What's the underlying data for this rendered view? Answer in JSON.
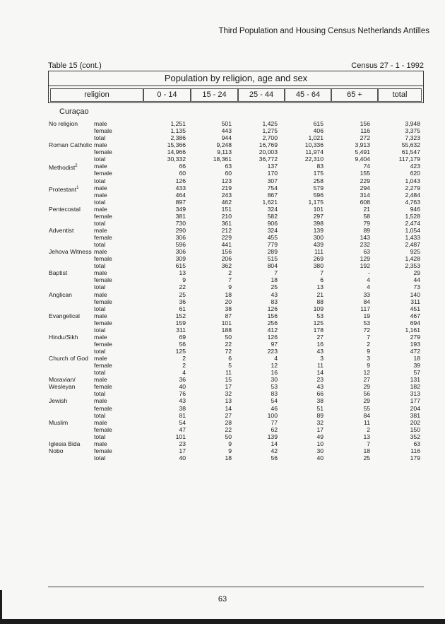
{
  "header": {
    "running_title": "Third Population and Housing Census Netherlands Antilles"
  },
  "table": {
    "label": "Table 15 (cont.)",
    "census": "Census 27 - 1 - 1992",
    "title": "Population by religion, age and sex",
    "columns": [
      "religion",
      "0 - 14",
      "15 - 24",
      "25 - 44",
      "45 - 64",
      "65 +",
      "total"
    ],
    "region": "Curaçao",
    "groups": [
      {
        "religion": "No religion",
        "rows": [
          [
            "male",
            "1,251",
            "501",
            "1,425",
            "615",
            "156",
            "3,948"
          ],
          [
            "female",
            "1,135",
            "443",
            "1,275",
            "406",
            "116",
            "3,375"
          ],
          [
            "total",
            "2,386",
            "944",
            "2,700",
            "1,021",
            "272",
            "7,323"
          ]
        ]
      },
      {
        "religion": "Roman Catholic",
        "rows": [
          [
            "male",
            "15,366",
            "9,248",
            "16,769",
            "10,336",
            "3,913",
            "55,632"
          ],
          [
            "female",
            "14,966",
            "9,113",
            "20,003",
            "11,974",
            "5,491",
            "61,547"
          ],
          [
            "total",
            "30,332",
            "18,361",
            "36,772",
            "22,310",
            "9,404",
            "117,179"
          ]
        ]
      },
      {
        "religion": "Methodist",
        "sup": "2",
        "rows": [
          [
            "male",
            "66",
            "63",
            "137",
            "83",
            "74",
            "423"
          ],
          [
            "female",
            "60",
            "60",
            "170",
            "175",
            "155",
            "620"
          ],
          [
            "total",
            "126",
            "123",
            "307",
            "258",
            "229",
            "1,043"
          ]
        ]
      },
      {
        "religion": "Protestant",
        "sup": "1",
        "rows": [
          [
            "male",
            "433",
            "219",
            "754",
            "579",
            "294",
            "2,279"
          ],
          [
            "male",
            "464",
            "243",
            "867",
            "596",
            "314",
            "2,484"
          ],
          [
            "total",
            "897",
            "462",
            "1,621",
            "1,175",
            "608",
            "4,763"
          ]
        ]
      },
      {
        "religion": "Pentecostal",
        "rows": [
          [
            "male",
            "349",
            "151",
            "324",
            "101",
            "21",
            "946"
          ],
          [
            "female",
            "381",
            "210",
            "582",
            "297",
            "58",
            "1,528"
          ],
          [
            "total",
            "730",
            "361",
            "906",
            "398",
            "79",
            "2,474"
          ]
        ]
      },
      {
        "religion": "Adventist",
        "rows": [
          [
            "male",
            "290",
            "212",
            "324",
            "139",
            "89",
            "1,054"
          ],
          [
            "female",
            "306",
            "229",
            "455",
            "300",
            "143",
            "1,433"
          ],
          [
            "total",
            "596",
            "441",
            "779",
            "439",
            "232",
            "2,487"
          ]
        ]
      },
      {
        "religion": "Jehova Witness",
        "rows": [
          [
            "male",
            "306",
            "156",
            "289",
            "111",
            "63",
            "925"
          ],
          [
            "female",
            "309",
            "206",
            "515",
            "269",
            "129",
            "1,428"
          ],
          [
            "total",
            "615",
            "362",
            "804",
            "380",
            "192",
            "2,353"
          ]
        ]
      },
      {
        "religion": "Baptist",
        "rows": [
          [
            "male",
            "13",
            "2",
            "7",
            "7",
            "-",
            "29"
          ],
          [
            "female",
            "9",
            "7",
            "18",
            "6",
            "4",
            "44"
          ],
          [
            "total",
            "22",
            "9",
            "25",
            "13",
            "4",
            "73"
          ]
        ]
      },
      {
        "religion": "Anglican",
        "rows": [
          [
            "male",
            "25",
            "18",
            "43",
            "21",
            "33",
            "140"
          ],
          [
            "female",
            "36",
            "20",
            "83",
            "88",
            "84",
            "311"
          ],
          [
            "total",
            "61",
            "38",
            "126",
            "109",
            "117",
            "451"
          ]
        ]
      },
      {
        "religion": "Evangelical",
        "rows": [
          [
            "male",
            "152",
            "87",
            "156",
            "53",
            "19",
            "467"
          ],
          [
            "female",
            "159",
            "101",
            "256",
            "125",
            "53",
            "694"
          ],
          [
            "total",
            "311",
            "188",
            "412",
            "178",
            "72",
            "1,161"
          ]
        ]
      },
      {
        "religion": "Hindu/Sikh",
        "rows": [
          [
            "male",
            "69",
            "50",
            "126",
            "27",
            "7",
            "279"
          ],
          [
            "female",
            "56",
            "22",
            "97",
            "16",
            "2",
            "193"
          ],
          [
            "total",
            "125",
            "72",
            "223",
            "43",
            "9",
            "472"
          ]
        ]
      },
      {
        "religion": "Church of God",
        "rows": [
          [
            "male",
            "2",
            "6",
            "4",
            "3",
            "3",
            "18"
          ],
          [
            "female",
            "2",
            "5",
            "12",
            "11",
            "9",
            "39"
          ],
          [
            "total",
            "4",
            "11",
            "16",
            "14",
            "12",
            "57"
          ]
        ]
      },
      {
        "religion": "Moravian/",
        "religion2": "Wesleyan",
        "rows": [
          [
            "male",
            "36",
            "15",
            "30",
            "23",
            "27",
            "131"
          ],
          [
            "female",
            "40",
            "17",
            "53",
            "43",
            "29",
            "182"
          ],
          [
            "total",
            "76",
            "32",
            "83",
            "66",
            "56",
            "313"
          ]
        ]
      },
      {
        "religion": "Jewish",
        "rows": [
          [
            "male",
            "43",
            "13",
            "54",
            "38",
            "29",
            "177"
          ],
          [
            "female",
            "38",
            "14",
            "46",
            "51",
            "55",
            "204"
          ],
          [
            "total",
            "81",
            "27",
            "100",
            "89",
            "84",
            "381"
          ]
        ]
      },
      {
        "religion": "Muslim",
        "rows": [
          [
            "male",
            "54",
            "28",
            "77",
            "32",
            "11",
            "202"
          ],
          [
            "female",
            "47",
            "22",
            "62",
            "17",
            "2",
            "150"
          ],
          [
            "total",
            "101",
            "50",
            "139",
            "49",
            "13",
            "352"
          ]
        ]
      },
      {
        "religion": "Iglesia Bida",
        "religion2": "Nobo",
        "rows": [
          [
            "male",
            "23",
            "9",
            "14",
            "10",
            "7",
            "63"
          ],
          [
            "female",
            "17",
            "9",
            "42",
            "30",
            "18",
            "116"
          ],
          [
            "total",
            "40",
            "18",
            "56",
            "40",
            "25",
            "179"
          ]
        ]
      }
    ]
  },
  "footer": {
    "page_number": "63"
  }
}
